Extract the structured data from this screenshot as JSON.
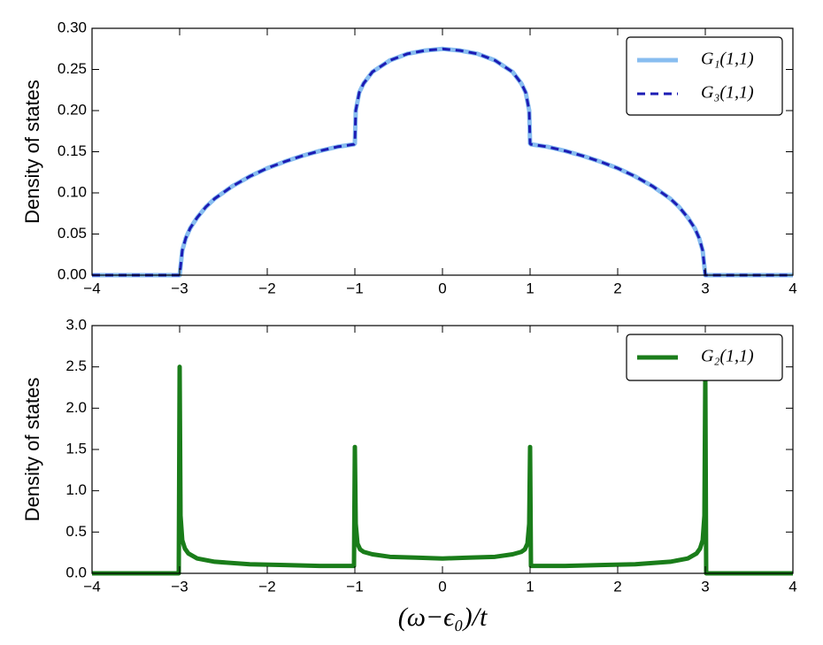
{
  "chart_data": [
    {
      "type": "line",
      "ylabel": "Density of states",
      "x": [
        -4,
        -3.5,
        -3.01,
        -3,
        -2.97,
        -2.93,
        -2.88,
        -2.8,
        -2.7,
        -2.6,
        -2.4,
        -2.2,
        -2,
        -1.8,
        -1.6,
        -1.4,
        -1.2,
        -1.01,
        -1,
        -0.99,
        -0.95,
        -0.9,
        -0.8,
        -0.6,
        -0.4,
        -0.2,
        0,
        0.2,
        0.4,
        0.6,
        0.8,
        0.9,
        0.95,
        0.99,
        1,
        1.01,
        1.2,
        1.4,
        1.6,
        1.8,
        2,
        2.2,
        2.4,
        2.6,
        2.7,
        2.8,
        2.88,
        2.93,
        2.97,
        3,
        3.01,
        3.5,
        4
      ],
      "series": [
        {
          "name": "G₁(1,1)",
          "color": "#88bdf0",
          "linestyle": "solid",
          "values": [
            0,
            0,
            0,
            0,
            0.03,
            0.045,
            0.057,
            0.07,
            0.083,
            0.093,
            0.108,
            0.12,
            0.13,
            0.138,
            0.145,
            0.151,
            0.156,
            0.159,
            0.16,
            0.2,
            0.222,
            0.233,
            0.247,
            0.261,
            0.269,
            0.273,
            0.275,
            0.273,
            0.269,
            0.261,
            0.247,
            0.233,
            0.222,
            0.2,
            0.16,
            0.159,
            0.156,
            0.151,
            0.145,
            0.138,
            0.13,
            0.12,
            0.108,
            0.093,
            0.083,
            0.07,
            0.057,
            0.045,
            0.03,
            0,
            0,
            0,
            0
          ]
        },
        {
          "name": "G₃(1,1)",
          "color": "#1c1cb4",
          "linestyle": "dashed",
          "values": [
            0,
            0,
            0,
            0,
            0.03,
            0.045,
            0.057,
            0.07,
            0.083,
            0.093,
            0.108,
            0.12,
            0.13,
            0.138,
            0.145,
            0.151,
            0.156,
            0.159,
            0.16,
            0.2,
            0.222,
            0.233,
            0.247,
            0.261,
            0.269,
            0.273,
            0.275,
            0.273,
            0.269,
            0.261,
            0.247,
            0.233,
            0.222,
            0.2,
            0.16,
            0.159,
            0.156,
            0.151,
            0.145,
            0.138,
            0.13,
            0.12,
            0.108,
            0.093,
            0.083,
            0.07,
            0.057,
            0.045,
            0.03,
            0,
            0,
            0,
            0
          ]
        }
      ],
      "xlim": [
        -4,
        4
      ],
      "xticks": [
        {
          "value": -4,
          "label": "−4"
        },
        {
          "value": -3,
          "label": "−3"
        },
        {
          "value": -2,
          "label": "−2"
        },
        {
          "value": -1,
          "label": "−1"
        },
        0,
        1,
        2,
        3,
        4
      ],
      "ylim": [
        0,
        0.3
      ],
      "yticks": [
        {
          "value": 0,
          "label": "0.00"
        },
        0.05,
        {
          "value": 0.1,
          "label": "0.10"
        },
        0.15,
        {
          "value": 0.2,
          "label": "0.20"
        },
        0.25,
        {
          "value": 0.3,
          "label": "0.30"
        }
      ],
      "legend": "upper right"
    },
    {
      "type": "line",
      "ylabel": "Density of states",
      "xlabel": "(ω−ϵ₀)/t",
      "x": [
        -4,
        -3.01,
        -3,
        -2.99,
        -2.97,
        -2.94,
        -2.9,
        -2.8,
        -2.6,
        -2.2,
        -1.8,
        -1.4,
        -1.1,
        -1.01,
        -1,
        -0.99,
        -0.97,
        -0.94,
        -0.9,
        -0.8,
        -0.6,
        -0.3,
        0,
        0.3,
        0.6,
        0.8,
        0.9,
        0.94,
        0.97,
        0.99,
        1,
        1.01,
        1.1,
        1.4,
        1.8,
        2.2,
        2.6,
        2.8,
        2.9,
        2.94,
        2.97,
        2.99,
        3,
        3.01,
        4
      ],
      "series": [
        {
          "name": "G₂(1,1)",
          "color": "#1a7d1a",
          "linestyle": "solid",
          "values": [
            0,
            0,
            2.5,
            0.7,
            0.4,
            0.3,
            0.24,
            0.18,
            0.14,
            0.11,
            0.1,
            0.09,
            0.09,
            0.09,
            1.53,
            0.6,
            0.36,
            0.29,
            0.26,
            0.23,
            0.2,
            0.19,
            0.18,
            0.19,
            0.2,
            0.23,
            0.26,
            0.29,
            0.36,
            0.6,
            1.53,
            0.09,
            0.09,
            0.09,
            0.1,
            0.11,
            0.14,
            0.18,
            0.24,
            0.3,
            0.4,
            0.7,
            2.4,
            0,
            0
          ]
        }
      ],
      "xlim": [
        -4,
        4
      ],
      "xticks": [
        {
          "value": -4,
          "label": "−4"
        },
        {
          "value": -3,
          "label": "−3"
        },
        {
          "value": -2,
          "label": "−2"
        },
        {
          "value": -1,
          "label": "−1"
        },
        0,
        1,
        2,
        3,
        4
      ],
      "ylim": [
        0,
        3
      ],
      "yticks": [
        {
          "value": 0,
          "label": "0.0"
        },
        0.5,
        {
          "value": 1,
          "label": "1.0"
        },
        1.5,
        {
          "value": 2,
          "label": "2.0"
        },
        2.5,
        {
          "value": 3,
          "label": "3.0"
        }
      ],
      "legend": "upper right"
    }
  ]
}
